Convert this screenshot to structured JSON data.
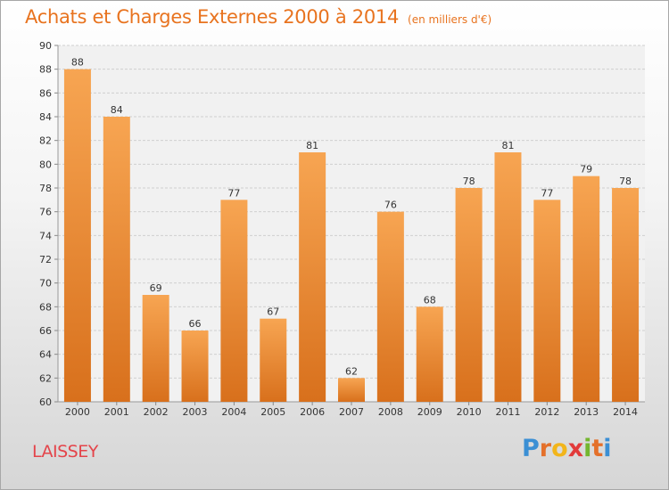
{
  "chart_data": {
    "type": "bar",
    "title": "Achats et Charges Externes 2000 à 2014",
    "subtitle": "(en milliers d'€)",
    "categories": [
      "2000",
      "2001",
      "2002",
      "2003",
      "2004",
      "2005",
      "2006",
      "2007",
      "2008",
      "2009",
      "2010",
      "2011",
      "2012",
      "2013",
      "2014"
    ],
    "values": [
      88,
      84,
      69,
      66,
      77,
      67,
      81,
      62,
      76,
      68,
      78,
      81,
      77,
      79,
      78
    ],
    "ylim": [
      60,
      90
    ],
    "yticks": [
      60,
      62,
      64,
      66,
      68,
      70,
      72,
      74,
      76,
      78,
      80,
      82,
      84,
      86,
      88,
      90
    ],
    "grid": true,
    "bar_color": "#f0923a"
  },
  "footer": {
    "commune": "LAISSEY",
    "brand": {
      "p": "P",
      "r": "r",
      "o": "o",
      "x": "x",
      "i1": "i",
      "t": "t",
      "i2": "i"
    }
  },
  "colors": {
    "title": "#e8731f",
    "commune": "#e4444a"
  }
}
